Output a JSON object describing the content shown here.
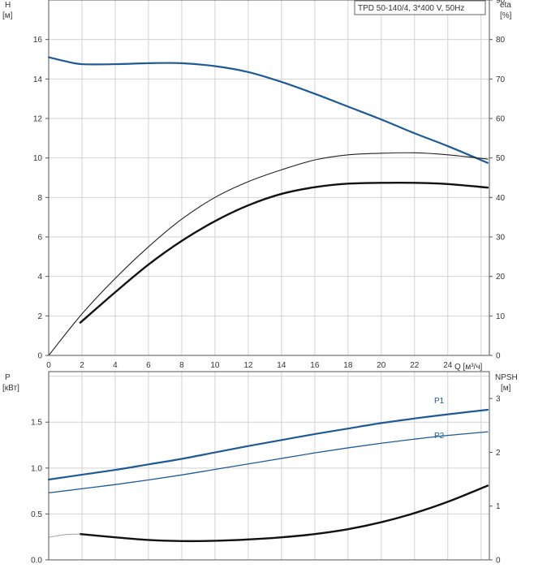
{
  "chart_data": [
    {
      "type": "line",
      "legend": {
        "label": "TPD 50-140/4, 3*400 V, 50Hz",
        "placement": "top-right"
      },
      "x_axis": {
        "label": "Q [м³/ч]",
        "range": [
          0,
          26.5
        ],
        "ticks": [
          "0",
          "2",
          "4",
          "6",
          "8",
          "10",
          "12",
          "14",
          "16",
          "18",
          "20",
          "22",
          "24"
        ]
      },
      "y_left": {
        "label_top": "H",
        "label_unit": "[м]",
        "range": [
          0,
          18
        ],
        "ticks": [
          "0",
          "2",
          "4",
          "6",
          "8",
          "10",
          "12",
          "14",
          "16"
        ]
      },
      "y_right": {
        "label_top": "eta",
        "label_unit": "[%]",
        "range": [
          0,
          90
        ],
        "ticks": [
          "0",
          "10",
          "20",
          "30",
          "40",
          "50",
          "60",
          "70",
          "80",
          "90"
        ]
      },
      "grid": true,
      "series": [
        {
          "key": "head",
          "axis": "left",
          "color": "#1f5a96",
          "width": 2.2,
          "x": [
            0,
            1,
            2,
            4,
            6,
            8,
            10,
            12,
            14,
            16,
            18,
            20,
            22,
            24,
            26.4
          ],
          "y": [
            15.1,
            14.9,
            14.75,
            14.75,
            14.8,
            14.8,
            14.65,
            14.35,
            13.85,
            13.25,
            12.6,
            11.95,
            11.25,
            10.6,
            9.75
          ]
        },
        {
          "key": "eta_thin",
          "axis": "right",
          "color": "#222222",
          "width": 1.1,
          "x": [
            0,
            2,
            4,
            6,
            8,
            10,
            12,
            14,
            16,
            18,
            20,
            22,
            24,
            26.4
          ],
          "y": [
            0,
            10.5,
            19.5,
            27.5,
            34.5,
            40,
            44,
            47,
            49.5,
            50.8,
            51.2,
            51.3,
            50.8,
            49.7
          ]
        },
        {
          "key": "eta_thick",
          "axis": "right",
          "color": "#111111",
          "width": 2.4,
          "x": [
            1.9,
            4,
            6,
            8,
            10,
            12,
            14,
            16,
            18,
            20,
            22,
            24,
            26.4
          ],
          "y": [
            8.3,
            16,
            23,
            29,
            34,
            38,
            40.9,
            42.6,
            43.5,
            43.7,
            43.7,
            43.4,
            42.5
          ]
        }
      ]
    },
    {
      "type": "line",
      "x_axis": {
        "range": [
          0,
          26.5
        ]
      },
      "y_left": {
        "label_top": "P",
        "label_unit": "[кВт]",
        "range": [
          0,
          2.05
        ],
        "ticks": [
          "0.0",
          "0.5",
          "1.0",
          "1.5"
        ]
      },
      "y_right": {
        "label_top": "NPSH",
        "label_unit": "[м]",
        "range": [
          0,
          3.5
        ],
        "ticks": [
          "0",
          "1",
          "2",
          "3"
        ]
      },
      "grid": true,
      "series": [
        {
          "key": "p1",
          "name": "P1",
          "axis": "left",
          "color": "#1f5a96",
          "width": 2.2,
          "x": [
            0,
            1.9,
            4,
            6,
            8,
            10,
            12,
            14,
            16,
            18,
            20,
            22,
            24,
            26.4
          ],
          "y": [
            0.875,
            0.925,
            0.98,
            1.04,
            1.1,
            1.17,
            1.24,
            1.305,
            1.37,
            1.43,
            1.49,
            1.54,
            1.585,
            1.635
          ]
        },
        {
          "key": "p2",
          "name": "P2",
          "axis": "left",
          "color": "#1f5a96",
          "width": 1.3,
          "x": [
            0,
            2,
            4,
            6,
            8,
            10,
            12,
            14,
            16,
            18,
            20,
            22,
            24,
            26.4
          ],
          "y": [
            0.73,
            0.775,
            0.82,
            0.87,
            0.925,
            0.985,
            1.045,
            1.105,
            1.165,
            1.22,
            1.27,
            1.315,
            1.355,
            1.395
          ]
        },
        {
          "key": "npsh",
          "axis": "right",
          "color": "#111111",
          "width": 2.4,
          "x": [
            1.9,
            4,
            6,
            8,
            10,
            12,
            14,
            16,
            18,
            20,
            22,
            24,
            26.4
          ],
          "y": [
            0.48,
            0.42,
            0.37,
            0.35,
            0.355,
            0.38,
            0.42,
            0.48,
            0.57,
            0.7,
            0.87,
            1.08,
            1.38
          ]
        },
        {
          "key": "npsh_lead",
          "axis": "right",
          "color": "#9aa0a8",
          "width": 1.0,
          "x": [
            0,
            1,
            1.9
          ],
          "y": [
            0.42,
            0.47,
            0.48
          ]
        }
      ]
    }
  ]
}
